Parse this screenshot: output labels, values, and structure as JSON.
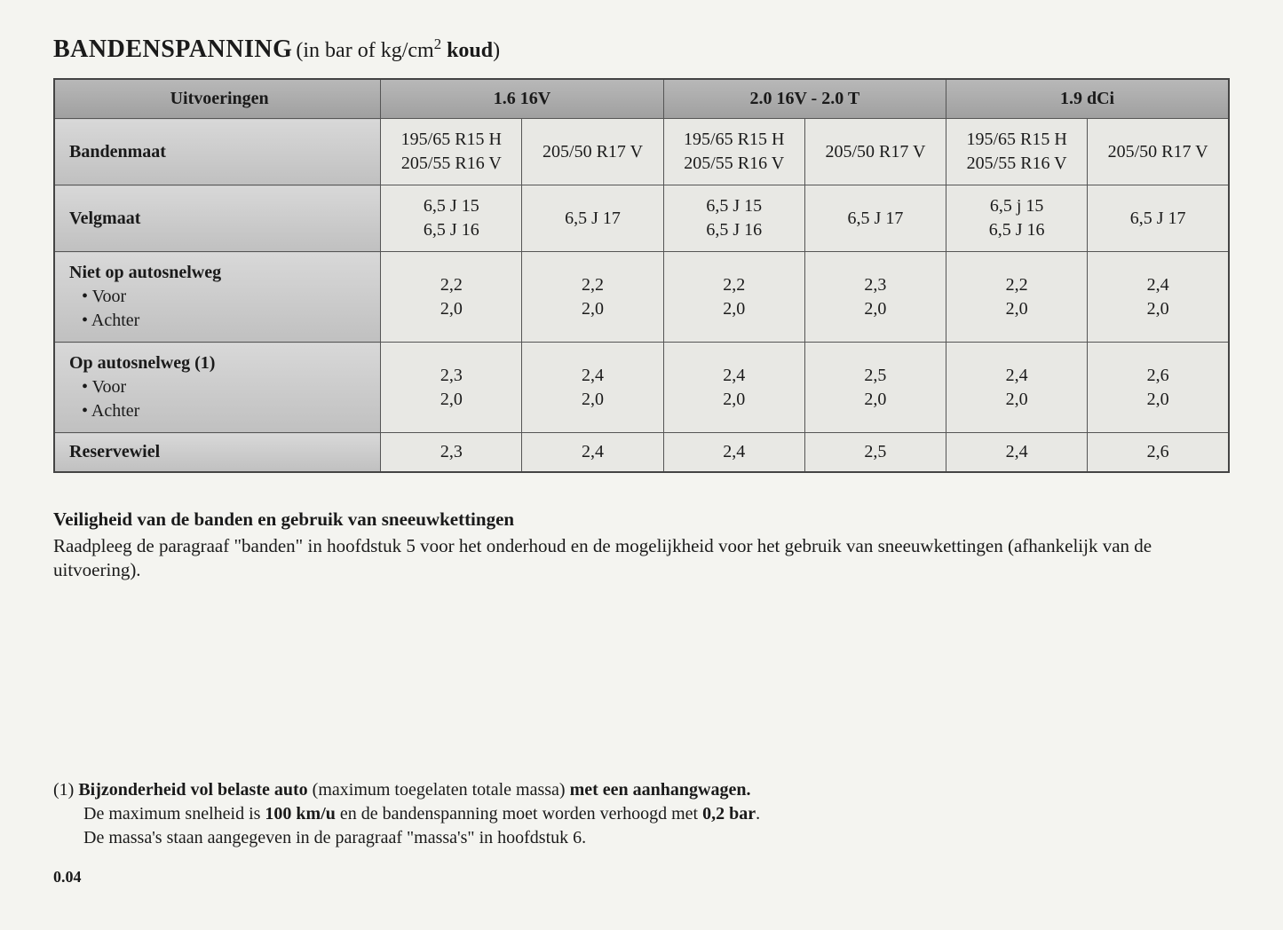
{
  "title": {
    "main": "BANDENSPANNING",
    "sub_open": "(in bar of kg/cm",
    "sup": "2",
    "sub_bold": " koud",
    "sub_close": ")"
  },
  "table": {
    "row_uitvoeringen": {
      "label": "Uitvoeringen",
      "cols": [
        "1.6 16V",
        "2.0 16V - 2.0 T",
        "1.9 dCi"
      ]
    },
    "row_bandenmaat": {
      "label": "Bandenmaat",
      "c1a": "195/65 R15 H\n205/55 R16 V",
      "c1b": "205/50 R17 V",
      "c2a": "195/65 R15 H\n205/55 R16 V",
      "c2b": "205/50 R17 V",
      "c3a": "195/65 R15 H\n205/55 R16 V",
      "c3b": "205/50 R17 V"
    },
    "row_velgmaat": {
      "label": "Velgmaat",
      "c1a": "6,5 J 15\n6,5 J 16",
      "c1b": "6,5 J 17",
      "c2a": "6,5 J 15\n6,5 J 16",
      "c2b": "6,5 J 17",
      "c3a": "6,5 j 15\n6,5 J 16",
      "c3b": "6,5 J 17"
    },
    "row_niet_autosnelweg": {
      "label": "Niet op autosnelweg",
      "sub1": "• Voor",
      "sub2": "• Achter",
      "c1a": "2,2\n2,0",
      "c1b": "2,2\n2,0",
      "c2a": "2,2\n2,0",
      "c2b": "2,3\n2,0",
      "c3a": "2,2\n2,0",
      "c3b": "2,4\n2,0"
    },
    "row_op_autosnelweg": {
      "label": "Op autosnelweg (1)",
      "sub1": "• Voor",
      "sub2": "• Achter",
      "c1a": "2,3\n2,0",
      "c1b": "2,4\n2,0",
      "c2a": "2,4\n2,0",
      "c2b": "2,5\n2,0",
      "c3a": "2,4\n2,0",
      "c3b": "2,6\n2,0"
    },
    "row_reservewiel": {
      "label": "Reservewiel",
      "c1a": "2,3",
      "c1b": "2,4",
      "c2a": "2,4",
      "c2b": "2,5",
      "c3a": "2,4",
      "c3b": "2,6"
    }
  },
  "safety": {
    "heading": "Veiligheid van de banden en gebruik van sneeuwkettingen",
    "text": "Raadpleeg de paragraaf \"banden\" in hoofdstuk 5 voor het onderhoud en de mogelijkheid voor het gebruik van sneeuwkettingen (afhankelijk van de uitvoering)."
  },
  "footnote": {
    "marker": "(1) ",
    "bold1": "Bijzonderheid vol belaste auto",
    "mid1": " (maximum toegelaten totale massa) ",
    "bold2": "met een aanhangwagen.",
    "line2_a": "De maximum snelheid is ",
    "line2_b": "100 km/u",
    "line2_c": " en de bandenspanning moet worden verhoogd met ",
    "line2_d": "0,2 bar",
    "line2_e": ".",
    "line3": "De massa's staan aangegeven in de paragraaf \"massa's\" in hoofdstuk 6."
  },
  "page": "0.04"
}
